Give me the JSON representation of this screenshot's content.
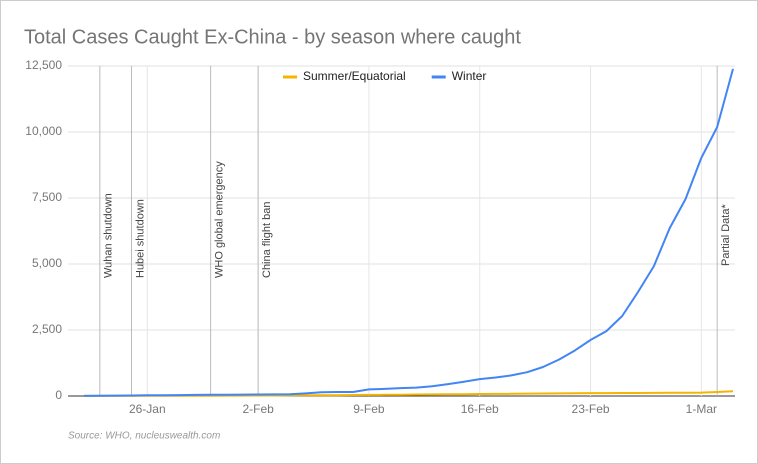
{
  "chart_data": {
    "type": "line",
    "title": "Total Cases Caught Ex-China - by season where caught",
    "source": "Source: WHO, nucleuswealth.com",
    "categories": [
      null,
      null,
      null,
      null,
      "26-Jan",
      null,
      null,
      null,
      null,
      null,
      null,
      "2-Feb",
      null,
      null,
      null,
      null,
      null,
      null,
      "9-Feb",
      null,
      null,
      null,
      null,
      null,
      null,
      "16-Feb",
      null,
      null,
      null,
      null,
      null,
      null,
      "23-Feb",
      null,
      null,
      null,
      null,
      null,
      null,
      "1-Mar",
      null,
      null
    ],
    "series": [
      {
        "name": "Summer/Equatorial",
        "color": "#f4b400",
        "values": [
          2,
          3,
          4,
          5,
          6,
          7,
          8,
          10,
          12,
          14,
          16,
          18,
          20,
          22,
          25,
          28,
          32,
          36,
          40,
          45,
          50,
          55,
          60,
          65,
          70,
          75,
          80,
          85,
          90,
          95,
          100,
          105,
          108,
          110,
          112,
          115,
          118,
          122,
          126,
          130,
          150,
          180
        ]
      },
      {
        "name": "Winter",
        "color": "#4285f4",
        "values": [
          5,
          10,
          15,
          20,
          25,
          30,
          35,
          40,
          45,
          50,
          52,
          55,
          60,
          70,
          100,
          140,
          150,
          150,
          250,
          270,
          300,
          320,
          370,
          450,
          540,
          640,
          700,
          780,
          900,
          1100,
          1380,
          1720,
          2120,
          2460,
          3030,
          3940,
          4920,
          6360,
          7460,
          9020,
          10190,
          12390
        ]
      }
    ],
    "annotations": [
      {
        "text": "Wuhan shutdown",
        "at": 1
      },
      {
        "text": "Hubei shutdown",
        "at": 3
      },
      {
        "text": "WHO global emergency",
        "at": 8
      },
      {
        "text": "China flight ban",
        "at": 11
      },
      {
        "text": "Partial Data*",
        "at": 40
      }
    ],
    "ylim": [
      0,
      12500
    ],
    "yticks": [
      0,
      {
        "value": 2500,
        "label": "2,500"
      },
      {
        "value": 5000,
        "label": "5,000"
      },
      {
        "value": 7500,
        "label": "7,500"
      },
      {
        "value": 10000,
        "label": "10,000"
      },
      {
        "value": 12500,
        "label": "12,500"
      }
    ],
    "grid": true,
    "legend": "top"
  }
}
